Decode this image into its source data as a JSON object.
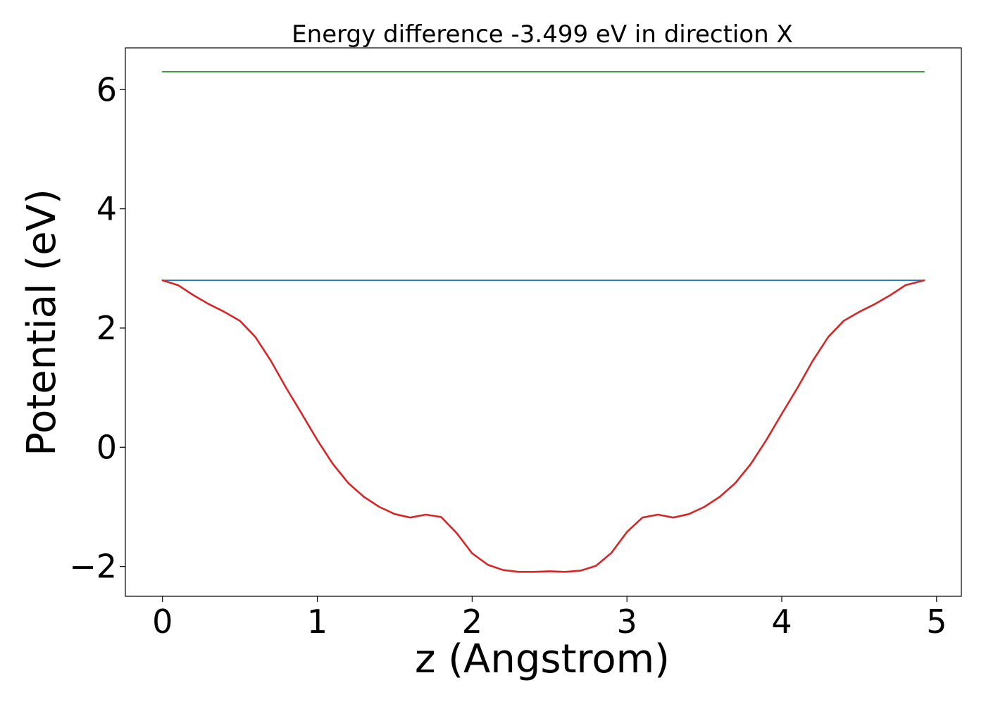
{
  "chart_data": {
    "type": "line",
    "title": "Energy difference -3.499 eV in direction X",
    "xlabel": "z (Angstrom)",
    "ylabel": "Potential (eV)",
    "xlim": [
      -0.24,
      5.16
    ],
    "ylim": [
      -2.5,
      6.7
    ],
    "xticks": [
      {
        "value": 0,
        "label": "0"
      },
      {
        "value": 1,
        "label": "1"
      },
      {
        "value": 2,
        "label": "2"
      },
      {
        "value": 3,
        "label": "3"
      },
      {
        "value": 4,
        "label": "4"
      },
      {
        "value": 5,
        "label": "5"
      }
    ],
    "yticks": [
      {
        "value": -2,
        "label": "−2"
      },
      {
        "value": 0,
        "label": "0"
      },
      {
        "value": 2,
        "label": "2"
      },
      {
        "value": 4,
        "label": "4"
      },
      {
        "value": 6,
        "label": "6"
      }
    ],
    "grid": false,
    "series": [
      {
        "color": "#2ca02c",
        "x": [
          0,
          4.92
        ],
        "y": [
          6.3,
          6.3
        ]
      },
      {
        "color": "#1f77b4",
        "x": [
          0,
          4.92
        ],
        "y": [
          2.8,
          2.8
        ]
      },
      {
        "color": "#d62728",
        "x": [
          0,
          0.1,
          0.2,
          0.3,
          0.4,
          0.5,
          0.6,
          0.7,
          0.8,
          0.9,
          1.0,
          1.1,
          1.2,
          1.3,
          1.4,
          1.5,
          1.6,
          1.7,
          1.8,
          1.9,
          2.0,
          2.1,
          2.2,
          2.3,
          2.4,
          2.5,
          2.6,
          2.7,
          2.8,
          2.9,
          3.0,
          3.1,
          3.2,
          3.3,
          3.4,
          3.5,
          3.6,
          3.7,
          3.8,
          3.9,
          4.0,
          4.1,
          4.2,
          4.3,
          4.4,
          4.5,
          4.6,
          4.7,
          4.8,
          4.92
        ],
        "y": [
          2.8,
          2.72,
          2.55,
          2.4,
          2.27,
          2.12,
          1.85,
          1.45,
          0.99,
          0.56,
          0.12,
          -0.28,
          -0.6,
          -0.83,
          -1.0,
          -1.12,
          -1.18,
          -1.13,
          -1.17,
          -1.44,
          -1.78,
          -1.97,
          -2.06,
          -2.09,
          -2.09,
          -2.08,
          -2.09,
          -2.07,
          -1.99,
          -1.77,
          -1.42,
          -1.18,
          -1.13,
          -1.18,
          -1.12,
          -1.0,
          -0.83,
          -0.6,
          -0.28,
          0.12,
          0.56,
          0.99,
          1.45,
          1.85,
          2.12,
          2.27,
          2.4,
          2.55,
          2.72,
          2.8
        ]
      }
    ]
  }
}
